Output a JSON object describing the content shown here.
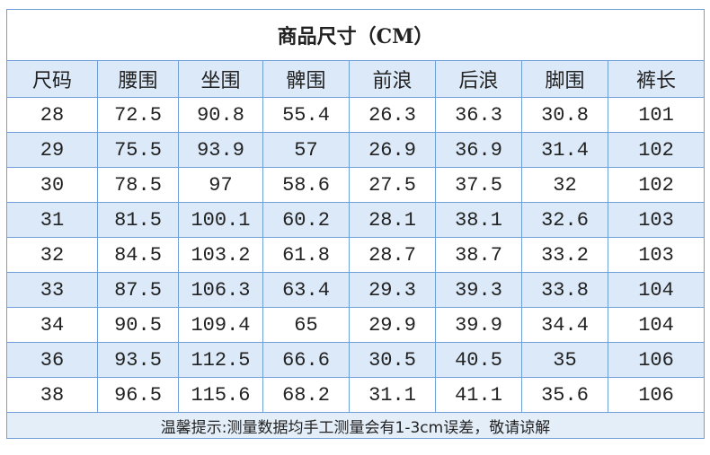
{
  "table": {
    "title": "商品尺寸（CM）",
    "header": [
      "尺码",
      "腰围",
      "坐围",
      "髀围",
      "前浪",
      "后浪",
      "脚围",
      "裤长"
    ],
    "rows": [
      [
        28,
        72.5,
        90.8,
        55.4,
        26.3,
        36.3,
        30.8,
        101
      ],
      [
        29,
        75.5,
        93.9,
        57,
        26.9,
        36.9,
        31.4,
        102
      ],
      [
        30,
        78.5,
        97,
        58.6,
        27.5,
        37.5,
        32,
        102
      ],
      [
        31,
        81.5,
        100.1,
        60.2,
        28.1,
        38.1,
        32.6,
        103
      ],
      [
        32,
        84.5,
        103.2,
        61.8,
        28.7,
        38.7,
        33.2,
        103
      ],
      [
        33,
        87.5,
        106.3,
        63.4,
        29.3,
        39.3,
        33.8,
        104
      ],
      [
        34,
        90.5,
        109.4,
        65,
        29.9,
        39.9,
        34.4,
        104
      ],
      [
        36,
        93.5,
        112.5,
        66.6,
        30.5,
        40.5,
        35,
        106
      ],
      [
        38,
        96.5,
        115.6,
        68.2,
        31.1,
        41.1,
        35.6,
        106
      ]
    ],
    "footnote": "温馨提示:测量数据均手工测量会有1-3cm误差，敬请谅解"
  }
}
